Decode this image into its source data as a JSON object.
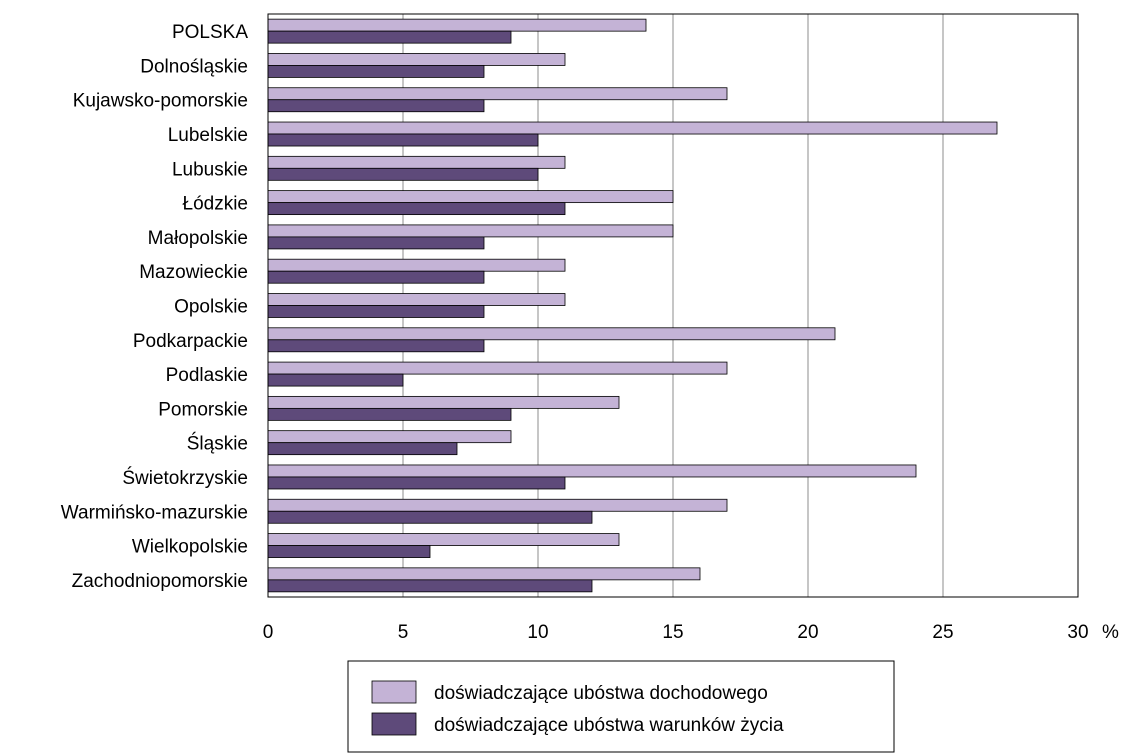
{
  "chart_data": {
    "type": "bar",
    "orientation": "horizontal",
    "categories": [
      "POLSKA",
      "Dolnośląskie",
      "Kujawsko-pomorskie",
      "Lubelskie",
      "Lubuskie",
      "Łódzkie",
      "Małopolskie",
      "Mazowieckie",
      "Opolskie",
      "Podkarpackie",
      "Podlaskie",
      "Pomorskie",
      "Śląskie",
      "Świetokrzyskie",
      "Warmińsko-mazurskie",
      "Wielkopolskie",
      "Zachodniopomorskie"
    ],
    "series": [
      {
        "name": "doświadczające ubóstwa dochodowego",
        "color": "#c4b3d6",
        "values": [
          14,
          11,
          17,
          27,
          11,
          15,
          15,
          11,
          11,
          21,
          17,
          13,
          9,
          24,
          17,
          13,
          16
        ]
      },
      {
        "name": "doświadczające ubóstwa warunków życia",
        "color": "#5e4a7a",
        "values": [
          9,
          8,
          8,
          10,
          10,
          11,
          8,
          8,
          8,
          8,
          5,
          9,
          7,
          11,
          12,
          6,
          12
        ]
      }
    ],
    "xlim": [
      0,
      30
    ],
    "xticks": [
      0,
      5,
      10,
      15,
      20,
      25,
      30
    ],
    "xunit": "%",
    "grid": true,
    "legend_position": "bottom"
  }
}
